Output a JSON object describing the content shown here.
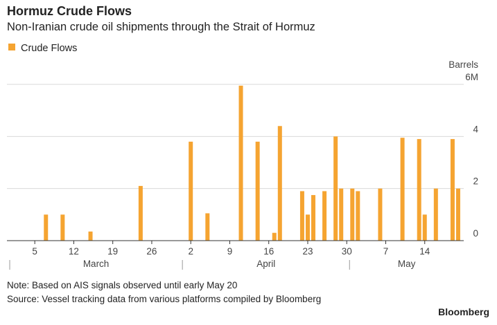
{
  "chart_data": {
    "type": "bar",
    "title": "Hormuz Crude Flows",
    "subtitle": "Non-Iranian crude oil shipments through the Strait of Hormuz",
    "y_label": "Barrels",
    "note": "Note: Based on AIS signals observed until early May 20",
    "source": "Source: Vessel tracking data from various platforms compiled by Bloomberg",
    "brand": "Bloomberg",
    "x": [
      "03-07",
      "03-10",
      "03-15",
      "03-24",
      "04-02",
      "04-05",
      "04-11",
      "04-14",
      "04-17",
      "04-18",
      "04-22",
      "04-23",
      "04-24",
      "04-26",
      "04-28",
      "04-29",
      "05-01",
      "05-02",
      "05-06",
      "05-10",
      "05-13",
      "05-14",
      "05-16",
      "05-19",
      "05-20"
    ],
    "series": [
      {
        "name": "Crude Flows",
        "color": "#f5a431",
        "values": [
          1.0,
          1.0,
          0.35,
          2.1,
          3.8,
          1.05,
          5.95,
          3.8,
          0.3,
          4.4,
          1.9,
          1.0,
          1.75,
          1.9,
          4.0,
          2.0,
          2.0,
          1.9,
          2.0,
          3.95,
          3.9,
          1.0,
          2.0,
          3.9,
          2.0
        ]
      }
    ],
    "xlim": [
      "02-28",
      "05-21"
    ],
    "xticks": [
      {
        "value": "03-05",
        "label": "5"
      },
      {
        "value": "03-12",
        "label": "12"
      },
      {
        "value": "03-19",
        "label": "19"
      },
      {
        "value": "03-26",
        "label": "26"
      },
      {
        "value": "04-02",
        "label": "2"
      },
      {
        "value": "04-09",
        "label": "9"
      },
      {
        "value": "04-16",
        "label": "16"
      },
      {
        "value": "04-23",
        "label": "23"
      },
      {
        "value": "04-30",
        "label": "30"
      },
      {
        "value": "05-07",
        "label": "7"
      },
      {
        "value": "05-14",
        "label": "14"
      }
    ],
    "months": [
      {
        "value": "03-01",
        "label": "March"
      },
      {
        "value": "04-01",
        "label": "April"
      },
      {
        "value": "05-01",
        "label": "May"
      }
    ],
    "ylim": [
      0,
      6
    ],
    "yticks": [
      0,
      2,
      4,
      {
        "value": 6,
        "label": "6M"
      }
    ],
    "grid": true
  }
}
